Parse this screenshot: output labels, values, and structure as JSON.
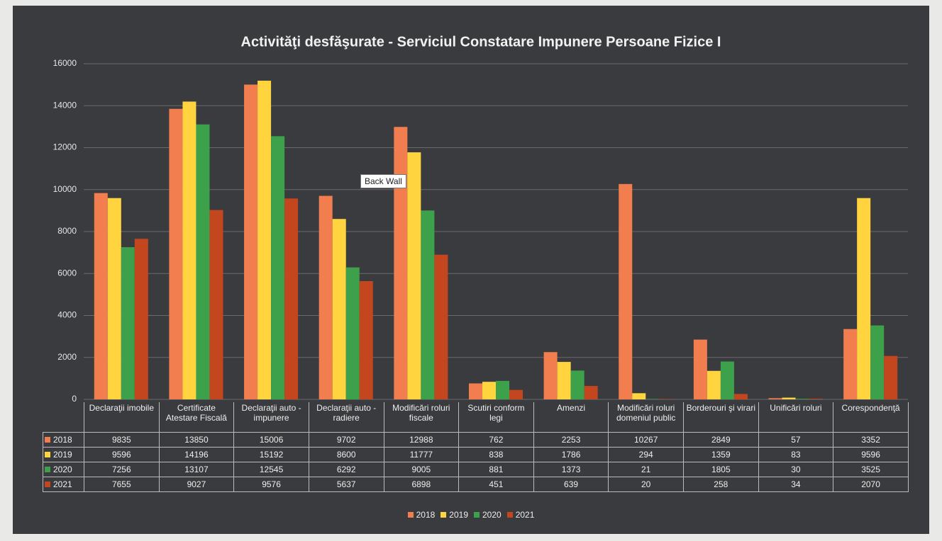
{
  "chart_data": {
    "type": "bar",
    "title": "Activităţi desfăşurate - Serviciul Constatare Impunere Persoane Fizice I",
    "annotation": "Back Wall",
    "categories": [
      "Declaraţii imobile",
      "Certificate Atestare Fiscală",
      "Declaraţii auto - impunere",
      "Declaraţii auto - radiere",
      "Modificări roluri fiscale",
      "Scutiri conform legi",
      "Amenzi",
      "Modificări roluri domeniul public",
      "Borderouri şi virari",
      "Unificări roluri",
      "Corespondenţă"
    ],
    "series": [
      {
        "name": "2018",
        "color": "#f27d4e",
        "values": [
          9835,
          13850,
          15006,
          9702,
          12988,
          762,
          2253,
          10267,
          2849,
          57,
          3352
        ]
      },
      {
        "name": "2019",
        "color": "#ffd43e",
        "values": [
          9596,
          14196,
          15192,
          8600,
          11777,
          838,
          1786,
          294,
          1359,
          83,
          9596
        ]
      },
      {
        "name": "2020",
        "color": "#3da04a",
        "values": [
          7256,
          13107,
          12545,
          6292,
          9005,
          881,
          1373,
          21,
          1805,
          30,
          3525
        ]
      },
      {
        "name": "2021",
        "color": "#c4461f",
        "values": [
          7655,
          9027,
          9576,
          5637,
          6898,
          451,
          639,
          20,
          258,
          34,
          2070
        ]
      }
    ],
    "ylim": [
      0,
      16000
    ],
    "yticks": [
      0,
      2000,
      4000,
      6000,
      8000,
      10000,
      12000,
      14000,
      16000
    ],
    "grid": true,
    "legend": "bottom"
  }
}
